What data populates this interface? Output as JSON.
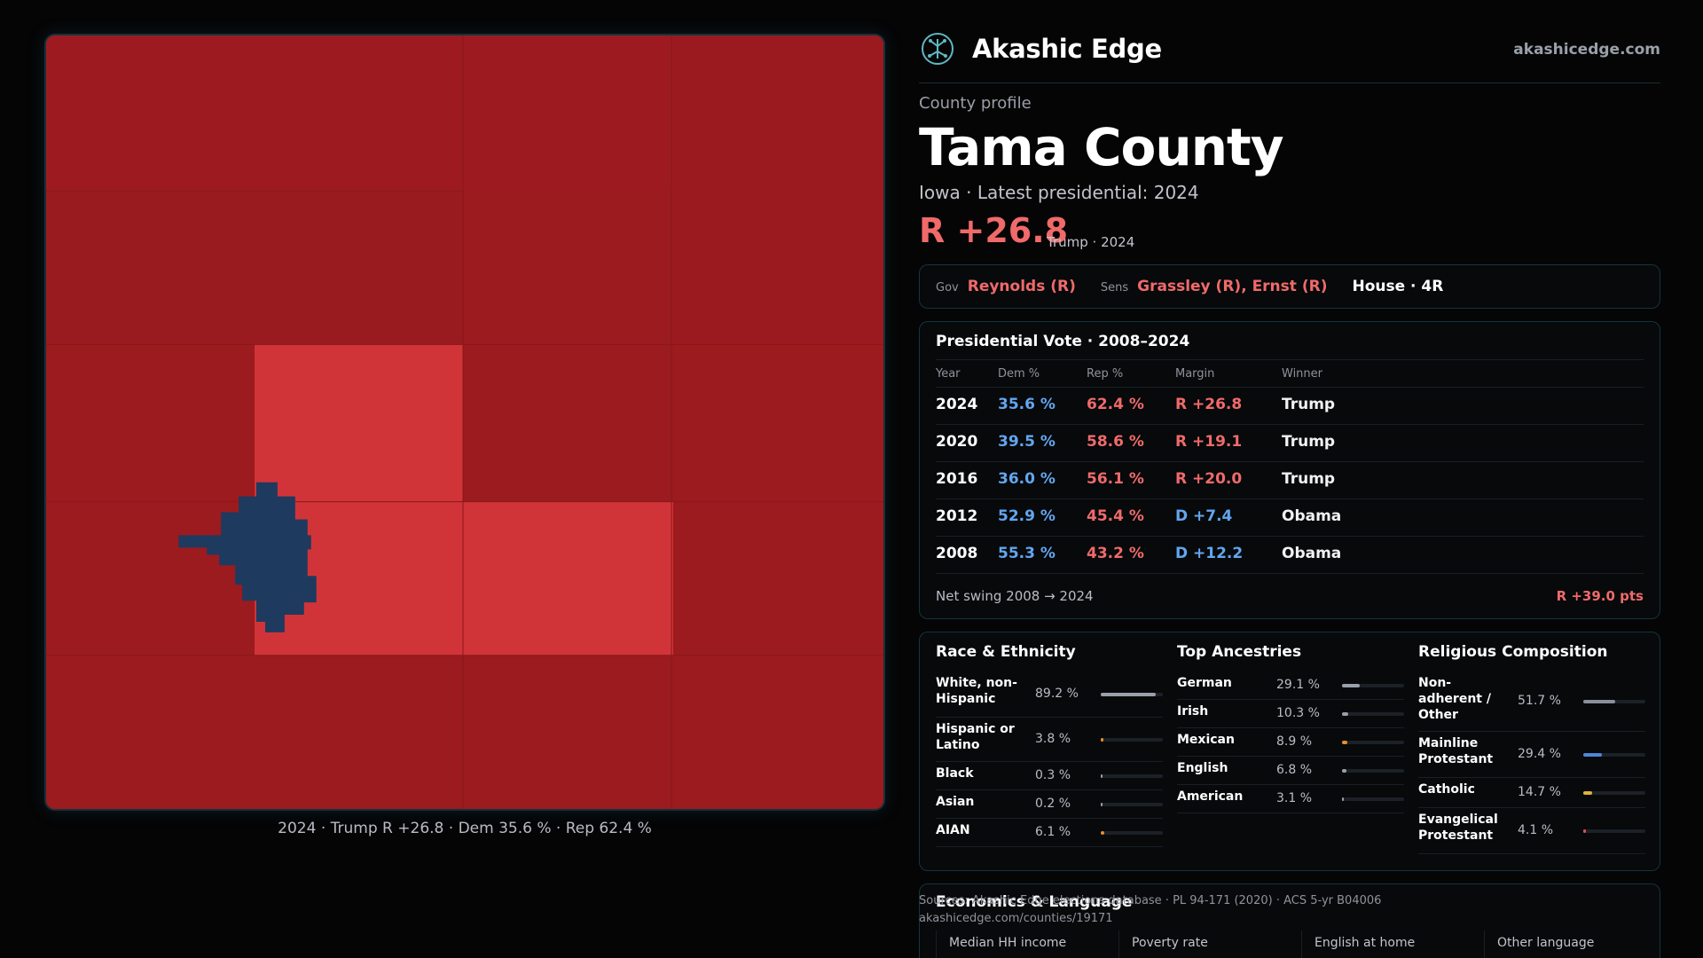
{
  "map": {
    "caption": "2024 · Trump R +26.8 · Dem 35.6 % · Rep 62.4 %",
    "colors": {
      "strong_rep": "#9b1b1f",
      "lean_rep": "#d13438",
      "dem_area": "#1e3a5f"
    }
  },
  "brand": {
    "name": "Akashic Edge",
    "url": "akashicedge.com",
    "logo_icon": "circuit-tree-logo"
  },
  "profile": {
    "eyebrow": "County profile",
    "title": "Tama County",
    "subtitle": "Iowa · Latest presidential: 2024",
    "margin": "R +26.8",
    "margin_sub": "Trump · 2024"
  },
  "officials": {
    "gov_label": "Gov",
    "gov": "Reynolds (R)",
    "sens_label": "Sens",
    "sens": "Grassley (R), Ernst (R)",
    "house": "House · 4R"
  },
  "presidential": {
    "title": "Presidential Vote · 2008–2024",
    "headers": {
      "year": "Year",
      "dem": "Dem %",
      "rep": "Rep %",
      "margin": "Margin",
      "winner": "Winner"
    },
    "rows": [
      {
        "year": "2024",
        "dem": "35.6 %",
        "rep": "62.4 %",
        "margin": "R +26.8",
        "party": "R",
        "winner": "Trump"
      },
      {
        "year": "2020",
        "dem": "39.5 %",
        "rep": "58.6 %",
        "margin": "R +19.1",
        "party": "R",
        "winner": "Trump"
      },
      {
        "year": "2016",
        "dem": "36.0 %",
        "rep": "56.1 %",
        "margin": "R +20.0",
        "party": "R",
        "winner": "Trump"
      },
      {
        "year": "2012",
        "dem": "52.9 %",
        "rep": "45.4 %",
        "margin": "D +7.4",
        "party": "D",
        "winner": "Obama"
      },
      {
        "year": "2008",
        "dem": "55.3 %",
        "rep": "43.2 %",
        "margin": "D +12.2",
        "party": "D",
        "winner": "Obama"
      }
    ],
    "swing_label": "Net swing 2008 → 2024",
    "swing_value": "R +39.0 pts"
  },
  "race": {
    "title": "Race & Ethnicity",
    "rows": [
      {
        "name": "White, non-Hispanic",
        "value": "89.2 %",
        "pct": 0.892,
        "color": "#9aa0aa"
      },
      {
        "name": "Hispanic or Latino",
        "value": "3.8 %",
        "pct": 0.038,
        "color": "#e8902a"
      },
      {
        "name": "Black",
        "value": "0.3 %",
        "pct": 0.003,
        "color": "#9aa0aa"
      },
      {
        "name": "Asian",
        "value": "0.2 %",
        "pct": 0.002,
        "color": "#9aa0aa"
      },
      {
        "name": "AIAN",
        "value": "6.1 %",
        "pct": 0.061,
        "color": "#e8902a"
      }
    ]
  },
  "ancestry": {
    "title": "Top Ancestries",
    "rows": [
      {
        "name": "German",
        "value": "29.1 %",
        "pct": 0.291,
        "color": "#9aa0aa"
      },
      {
        "name": "Irish",
        "value": "10.3 %",
        "pct": 0.103,
        "color": "#9aa0aa"
      },
      {
        "name": "Mexican",
        "value": "8.9 %",
        "pct": 0.089,
        "color": "#e8902a"
      },
      {
        "name": "English",
        "value": "6.8 %",
        "pct": 0.068,
        "color": "#9aa0aa"
      },
      {
        "name": "American",
        "value": "3.1 %",
        "pct": 0.031,
        "color": "#9aa0aa"
      }
    ]
  },
  "religion": {
    "title": "Religious Composition",
    "rows": [
      {
        "name": "Non-adherent / Other",
        "value": "51.7 %",
        "pct": 0.517,
        "color": "#8a8f98"
      },
      {
        "name": "Mainline Protestant",
        "value": "29.4 %",
        "pct": 0.294,
        "color": "#4f86d9"
      },
      {
        "name": "Catholic",
        "value": "14.7 %",
        "pct": 0.147,
        "color": "#e0b23a"
      },
      {
        "name": "Evangelical Protestant",
        "value": "4.1 %",
        "pct": 0.041,
        "color": "#d9534f"
      }
    ]
  },
  "economics": {
    "title": "Economics & Language",
    "cells": [
      "Median HH income",
      "Poverty rate",
      "English at home",
      "Other language"
    ]
  },
  "sources": {
    "line1": "Sources: Akashic Edge elections database · PL 94-171 (2020) · ACS 5-yr B04006",
    "line2": "akashicedge.com/counties/19171"
  }
}
